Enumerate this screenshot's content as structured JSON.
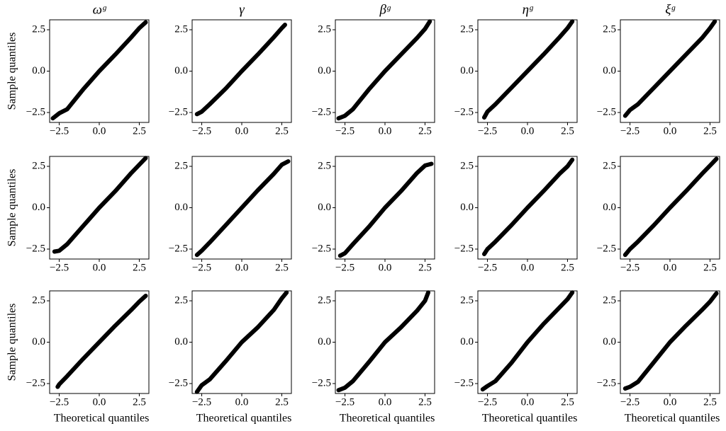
{
  "chart_data": [
    {
      "type": "line",
      "title": "ωᵍ",
      "ylabel": "Sample quantiles",
      "color": "#000000",
      "x": [
        -2.9,
        -2.5,
        -2,
        -1,
        0,
        1,
        2,
        2.5,
        2.9
      ],
      "y": [
        -2.85,
        -2.55,
        -2.3,
        -1.1,
        0,
        1.0,
        2.05,
        2.6,
        2.95
      ],
      "xlim": [
        -3.1,
        3.1
      ],
      "ylim": [
        -3.1,
        3.1
      ],
      "xticks": [
        {
          "value": -2.5,
          "label": "−2.5"
        },
        {
          "value": 0,
          "label": "0.0"
        },
        2.5
      ],
      "yticks": [
        {
          "value": -2.5,
          "label": "−2.5"
        },
        {
          "value": 0,
          "label": "0.0"
        },
        2.5
      ]
    },
    {
      "type": "line",
      "title": "γ",
      "color": "#000000",
      "x": [
        -2.8,
        -2.5,
        -2,
        -1,
        0,
        1,
        2,
        2.5,
        2.7
      ],
      "y": [
        -2.6,
        -2.45,
        -2.0,
        -1.05,
        0,
        1.0,
        2.05,
        2.6,
        2.8
      ],
      "xlim": [
        -3.1,
        3.1
      ],
      "ylim": [
        -3.1,
        3.1
      ],
      "xticks": [
        {
          "value": -2.5,
          "label": "−2.5"
        },
        {
          "value": 0,
          "label": "0.0"
        },
        2.5
      ],
      "yticks": [
        {
          "value": -2.5,
          "label": "−2.5"
        },
        {
          "value": 0,
          "label": "0.0"
        },
        2.5
      ]
    },
    {
      "type": "line",
      "title": "βᵍ",
      "color": "#000000",
      "x": [
        -2.9,
        -2.5,
        -2,
        -1,
        0,
        1,
        2,
        2.5,
        2.8
      ],
      "y": [
        -2.85,
        -2.7,
        -2.3,
        -1.1,
        0,
        1.0,
        2.0,
        2.55,
        3.0
      ],
      "xlim": [
        -3.1,
        3.1
      ],
      "ylim": [
        -3.1,
        3.1
      ],
      "xticks": [
        {
          "value": -2.5,
          "label": "−2.5"
        },
        {
          "value": 0,
          "label": "0.0"
        },
        2.5
      ],
      "yticks": [
        {
          "value": -2.5,
          "label": "−2.5"
        },
        {
          "value": 0,
          "label": "0.0"
        },
        2.5
      ]
    },
    {
      "type": "line",
      "title": "ηᵍ",
      "color": "#000000",
      "x": [
        -2.7,
        -2.5,
        -2,
        -1,
        0,
        1,
        2,
        2.5,
        2.8
      ],
      "y": [
        -2.8,
        -2.45,
        -2.0,
        -1.0,
        0,
        1.0,
        2.05,
        2.6,
        3.0
      ],
      "xlim": [
        -3.1,
        3.1
      ],
      "ylim": [
        -3.1,
        3.1
      ],
      "xticks": [
        {
          "value": -2.5,
          "label": "−2.5"
        },
        {
          "value": 0,
          "label": "0.0"
        },
        2.5
      ],
      "yticks": [
        {
          "value": -2.5,
          "label": "−2.5"
        },
        {
          "value": 0,
          "label": "0.0"
        },
        2.5
      ]
    },
    {
      "type": "line",
      "title": "ξᵍ",
      "color": "#000000",
      "x": [
        -2.8,
        -2.5,
        -2,
        -1,
        0,
        1,
        2,
        2.5,
        2.8
      ],
      "y": [
        -2.7,
        -2.35,
        -2.0,
        -1.0,
        0,
        1.0,
        2.0,
        2.6,
        3.0
      ],
      "xlim": [
        -3.1,
        3.1
      ],
      "ylim": [
        -3.1,
        3.1
      ],
      "xticks": [
        {
          "value": -2.5,
          "label": "−2.5"
        },
        {
          "value": 0,
          "label": "0.0"
        },
        2.5
      ],
      "yticks": [
        {
          "value": -2.5,
          "label": "−2.5"
        },
        {
          "value": 0,
          "label": "0.0"
        },
        2.5
      ]
    },
    {
      "type": "line",
      "ylabel": "Sample quantiles",
      "color": "#000000",
      "x": [
        -2.8,
        -2.5,
        -2,
        -1,
        0,
        1,
        2,
        2.5,
        2.9
      ],
      "y": [
        -2.65,
        -2.6,
        -2.2,
        -1.1,
        0,
        1.0,
        2.1,
        2.6,
        3.0
      ],
      "xlim": [
        -3.1,
        3.1
      ],
      "ylim": [
        -3.1,
        3.1
      ],
      "xticks": [
        {
          "value": -2.5,
          "label": "−2.5"
        },
        {
          "value": 0,
          "label": "0.0"
        },
        2.5
      ],
      "yticks": [
        {
          "value": -2.5,
          "label": "−2.5"
        },
        {
          "value": 0,
          "label": "0.0"
        },
        2.5
      ]
    },
    {
      "type": "line",
      "color": "#000000",
      "x": [
        -2.8,
        -2.5,
        -2,
        -1,
        0,
        1,
        2,
        2.5,
        2.9
      ],
      "y": [
        -2.85,
        -2.6,
        -2.1,
        -1.05,
        0,
        1.05,
        2.05,
        2.6,
        2.8
      ],
      "xlim": [
        -3.1,
        3.1
      ],
      "ylim": [
        -3.1,
        3.1
      ],
      "xticks": [
        {
          "value": -2.5,
          "label": "−2.5"
        },
        {
          "value": 0,
          "label": "0.0"
        },
        2.5
      ],
      "yticks": [
        {
          "value": -2.5,
          "label": "−2.5"
        },
        {
          "value": 0,
          "label": "0.0"
        },
        2.5
      ]
    },
    {
      "type": "line",
      "color": "#000000",
      "x": [
        -2.8,
        -2.5,
        -2,
        -1,
        0,
        1,
        2,
        2.5,
        2.9
      ],
      "y": [
        -2.9,
        -2.75,
        -2.2,
        -1.15,
        0,
        1.0,
        2.1,
        2.55,
        2.65
      ],
      "xlim": [
        -3.1,
        3.1
      ],
      "ylim": [
        -3.1,
        3.1
      ],
      "xticks": [
        {
          "value": -2.5,
          "label": "−2.5"
        },
        {
          "value": 0,
          "label": "0.0"
        },
        2.5
      ],
      "yticks": [
        {
          "value": -2.5,
          "label": "−2.5"
        },
        {
          "value": 0,
          "label": "0.0"
        },
        2.5
      ]
    },
    {
      "type": "line",
      "color": "#000000",
      "x": [
        -2.7,
        -2.5,
        -2,
        -1,
        0,
        1,
        2,
        2.5,
        2.8
      ],
      "y": [
        -2.8,
        -2.5,
        -2.05,
        -1.05,
        0,
        1.0,
        2.05,
        2.5,
        2.9
      ],
      "xlim": [
        -3.1,
        3.1
      ],
      "ylim": [
        -3.1,
        3.1
      ],
      "xticks": [
        {
          "value": -2.5,
          "label": "−2.5"
        },
        {
          "value": 0,
          "label": "0.0"
        },
        2.5
      ],
      "yticks": [
        {
          "value": -2.5,
          "label": "−2.5"
        },
        {
          "value": 0,
          "label": "0.0"
        },
        2.5
      ]
    },
    {
      "type": "line",
      "color": "#000000",
      "x": [
        -2.8,
        -2.5,
        -2,
        -1,
        0,
        1,
        2,
        2.5,
        2.9
      ],
      "y": [
        -2.85,
        -2.5,
        -2.05,
        -1.05,
        0,
        1.0,
        2.05,
        2.55,
        2.95
      ],
      "xlim": [
        -3.1,
        3.1
      ],
      "ylim": [
        -3.1,
        3.1
      ],
      "xticks": [
        {
          "value": -2.5,
          "label": "−2.5"
        },
        {
          "value": 0,
          "label": "0.0"
        },
        2.5
      ],
      "yticks": [
        {
          "value": -2.5,
          "label": "−2.5"
        },
        {
          "value": 0,
          "label": "0.0"
        },
        2.5
      ]
    },
    {
      "type": "line",
      "ylabel": "Sample quantiles",
      "xlabel": "Theoretical quantiles",
      "color": "#000000",
      "x": [
        -2.6,
        -2.5,
        -2,
        -1,
        0,
        1,
        2,
        2.5,
        2.9
      ],
      "y": [
        -2.7,
        -2.55,
        -2.05,
        -1.0,
        0,
        1.0,
        1.95,
        2.45,
        2.8
      ],
      "xlim": [
        -3.1,
        3.1
      ],
      "ylim": [
        -3.1,
        3.1
      ],
      "xticks": [
        {
          "value": -2.5,
          "label": "−2.5"
        },
        {
          "value": 0,
          "label": "0.0"
        },
        2.5
      ],
      "yticks": [
        {
          "value": -2.5,
          "label": "−2.5"
        },
        {
          "value": 0,
          "label": "0.0"
        },
        2.5
      ]
    },
    {
      "type": "line",
      "xlabel": "Theoretical quantiles",
      "color": "#000000",
      "x": [
        -2.8,
        -2.5,
        -2,
        -1,
        0,
        1,
        2,
        2.5,
        2.8
      ],
      "y": [
        -3.0,
        -2.6,
        -2.25,
        -1.15,
        0,
        0.9,
        1.95,
        2.65,
        3.0
      ],
      "xlim": [
        -3.1,
        3.1
      ],
      "ylim": [
        -3.1,
        3.1
      ],
      "xticks": [
        {
          "value": -2.5,
          "label": "−2.5"
        },
        {
          "value": 0,
          "label": "0.0"
        },
        2.5
      ],
      "yticks": [
        {
          "value": -2.5,
          "label": "−2.5"
        },
        {
          "value": 0,
          "label": "0.0"
        },
        2.5
      ]
    },
    {
      "type": "line",
      "xlabel": "Theoretical quantiles",
      "color": "#000000",
      "x": [
        -2.9,
        -2.5,
        -2,
        -1,
        0,
        1,
        2,
        2.5,
        2.7
      ],
      "y": [
        -2.9,
        -2.75,
        -2.35,
        -1.2,
        0,
        0.9,
        1.9,
        2.5,
        3.0
      ],
      "xlim": [
        -3.1,
        3.1
      ],
      "ylim": [
        -3.1,
        3.1
      ],
      "xticks": [
        {
          "value": -2.5,
          "label": "−2.5"
        },
        {
          "value": 0,
          "label": "0.0"
        },
        2.5
      ],
      "yticks": [
        {
          "value": -2.5,
          "label": "−2.5"
        },
        {
          "value": 0,
          "label": "0.0"
        },
        2.5
      ]
    },
    {
      "type": "line",
      "xlabel": "Theoretical quantiles",
      "color": "#000000",
      "x": [
        -2.8,
        -2.5,
        -2,
        -1,
        0,
        1,
        2,
        2.5,
        2.8
      ],
      "y": [
        -2.85,
        -2.65,
        -2.35,
        -1.25,
        0,
        1.1,
        2.1,
        2.6,
        3.0
      ],
      "xlim": [
        -3.1,
        3.1
      ],
      "ylim": [
        -3.1,
        3.1
      ],
      "xticks": [
        {
          "value": -2.5,
          "label": "−2.5"
        },
        {
          "value": 0,
          "label": "0.0"
        },
        2.5
      ],
      "yticks": [
        {
          "value": -2.5,
          "label": "−2.5"
        },
        {
          "value": 0,
          "label": "0.0"
        },
        2.5
      ]
    },
    {
      "type": "line",
      "xlabel": "Theoretical quantiles",
      "color": "#000000",
      "x": [
        -2.8,
        -2.5,
        -2,
        -1,
        0,
        1,
        2,
        2.5,
        2.9
      ],
      "y": [
        -2.8,
        -2.7,
        -2.4,
        -1.2,
        0,
        1.0,
        1.95,
        2.45,
        2.95
      ],
      "xlim": [
        -3.1,
        3.1
      ],
      "ylim": [
        -3.1,
        3.1
      ],
      "xticks": [
        {
          "value": -2.5,
          "label": "−2.5"
        },
        {
          "value": 0,
          "label": "0.0"
        },
        2.5
      ],
      "yticks": [
        {
          "value": -2.5,
          "label": "−2.5"
        },
        {
          "value": 0,
          "label": "0.0"
        },
        2.5
      ]
    }
  ]
}
